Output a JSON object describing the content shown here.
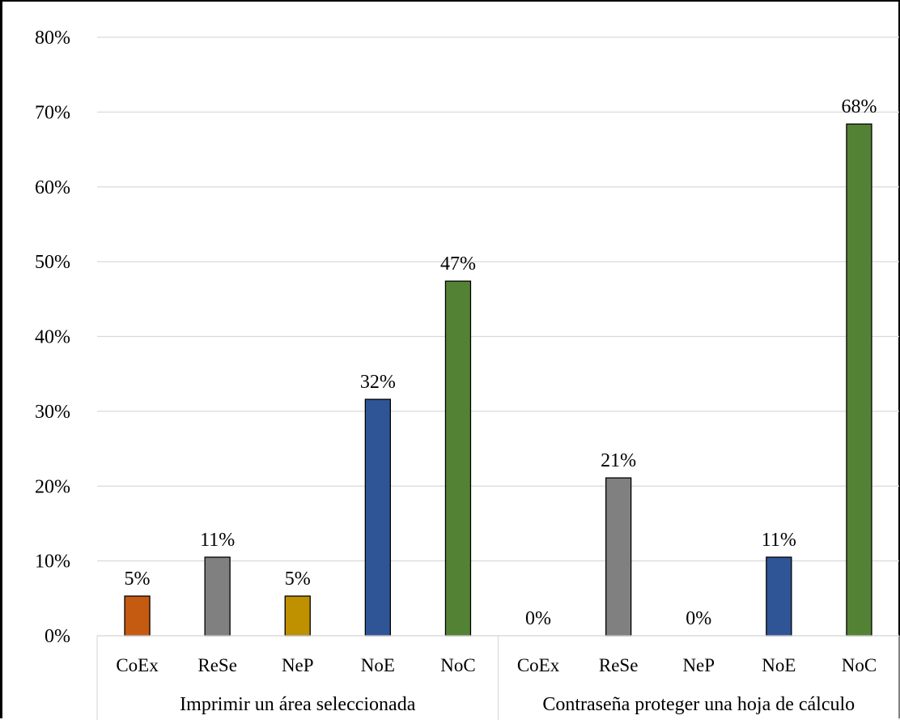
{
  "chart_data": {
    "type": "bar",
    "title": "",
    "xlabel": "",
    "ylabel": "",
    "ylim": [
      0,
      80
    ],
    "yticks": [
      "0%",
      "10%",
      "20%",
      "30%",
      "40%",
      "50%",
      "60%",
      "70%",
      "80%"
    ],
    "grid": true,
    "legend": "none",
    "groups": [
      {
        "name": "Imprimir un área seleccionada",
        "categories": [
          "CoEx",
          "ReSe",
          "NeP",
          "NoE",
          "NoC"
        ],
        "values": [
          5.3,
          10.5,
          5.3,
          31.6,
          47.4
        ],
        "labels": [
          "5%",
          "11%",
          "5%",
          "32%",
          "47%"
        ]
      },
      {
        "name": "Contraseña proteger una hoja de cálculo",
        "categories": [
          "CoEx",
          "ReSe",
          "NeP",
          "NoE",
          "NoC"
        ],
        "values": [
          0,
          21.1,
          0,
          10.5,
          68.4
        ],
        "labels": [
          "0%",
          "21%",
          "0%",
          "11%",
          "68%"
        ]
      }
    ],
    "colors": {
      "CoEx": "#C55A11",
      "ReSe": "#808080",
      "NeP": "#BF9000",
      "NoE": "#2F5597",
      "NoC": "#548235"
    }
  }
}
